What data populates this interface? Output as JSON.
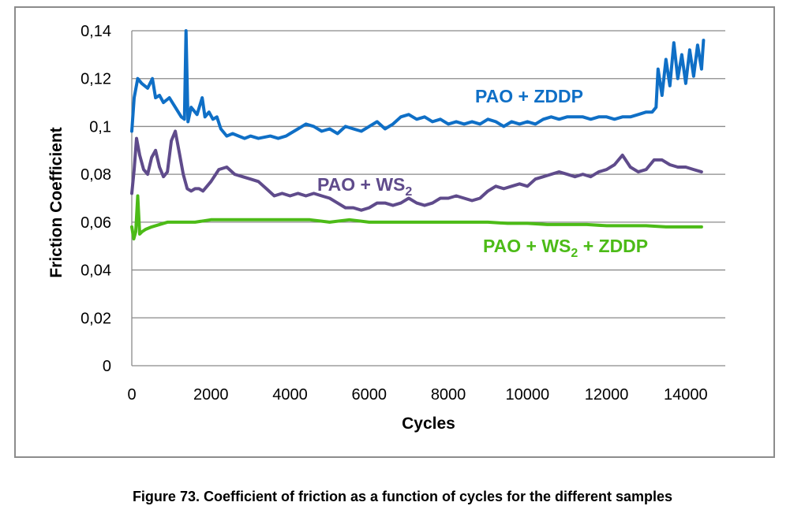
{
  "caption": "Figure 73. Coefficient of friction as a function of cycles for the different samples",
  "chart_data": {
    "type": "line",
    "title": "",
    "xlabel": "Cycles",
    "ylabel": "Friction Coefficient",
    "xlim": [
      0,
      15000
    ],
    "ylim": [
      0,
      0.14
    ],
    "x_ticks": [
      0,
      2000,
      4000,
      6000,
      8000,
      10000,
      12000,
      14000
    ],
    "x_tick_labels": [
      "0",
      "2000",
      "4000",
      "6000",
      "8000",
      "10000",
      "12000",
      "14000"
    ],
    "y_ticks": [
      0,
      0.02,
      0.04,
      0.06,
      0.08,
      0.1,
      0.12,
      0.14
    ],
    "y_tick_labels": [
      "0",
      "0,02",
      "0,04",
      "0,06",
      "0,08",
      "0,1",
      "0,12",
      "0,14"
    ],
    "grid": "horizontal",
    "legend": "inline labels",
    "series": [
      {
        "name": "PAO + ZDDP",
        "label_main": "PAO + ZDDP",
        "label_sub": "",
        "label_tail": "",
        "color": "#0f6fc6",
        "x": [
          0,
          60,
          150,
          250,
          400,
          520,
          600,
          700,
          800,
          950,
          1100,
          1250,
          1330,
          1370,
          1420,
          1500,
          1650,
          1780,
          1850,
          1950,
          2050,
          2150,
          2250,
          2400,
          2550,
          2700,
          2850,
          3000,
          3200,
          3500,
          3700,
          3900,
          4000,
          4200,
          4400,
          4600,
          4800,
          5000,
          5200,
          5400,
          5600,
          5800,
          6000,
          6200,
          6400,
          6600,
          6800,
          7000,
          7200,
          7400,
          7600,
          7800,
          8000,
          8200,
          8400,
          8600,
          8800,
          9000,
          9200,
          9400,
          9600,
          9800,
          10000,
          10200,
          10400,
          10600,
          10800,
          11000,
          11200,
          11400,
          11600,
          11800,
          12000,
          12200,
          12400,
          12600,
          12800,
          13000,
          13150,
          13250,
          13300,
          13400,
          13500,
          13600,
          13700,
          13800,
          13900,
          14000,
          14100,
          14200,
          14300,
          14400,
          14450
        ],
        "y": [
          0.098,
          0.112,
          0.12,
          0.118,
          0.116,
          0.12,
          0.112,
          0.113,
          0.11,
          0.112,
          0.108,
          0.104,
          0.103,
          0.14,
          0.102,
          0.108,
          0.105,
          0.112,
          0.104,
          0.106,
          0.103,
          0.104,
          0.099,
          0.096,
          0.097,
          0.096,
          0.095,
          0.096,
          0.095,
          0.096,
          0.095,
          0.096,
          0.097,
          0.099,
          0.101,
          0.1,
          0.098,
          0.099,
          0.097,
          0.1,
          0.099,
          0.098,
          0.1,
          0.102,
          0.099,
          0.101,
          0.104,
          0.105,
          0.103,
          0.104,
          0.102,
          0.103,
          0.101,
          0.102,
          0.101,
          0.102,
          0.101,
          0.103,
          0.102,
          0.1,
          0.102,
          0.101,
          0.102,
          0.101,
          0.103,
          0.104,
          0.103,
          0.104,
          0.104,
          0.104,
          0.103,
          0.104,
          0.104,
          0.103,
          0.104,
          0.104,
          0.105,
          0.106,
          0.106,
          0.108,
          0.124,
          0.113,
          0.128,
          0.117,
          0.135,
          0.12,
          0.13,
          0.118,
          0.132,
          0.121,
          0.134,
          0.124,
          0.136
        ]
      },
      {
        "name": "PAO + WS2",
        "label_main": "PAO + WS",
        "label_sub": "2",
        "label_tail": "",
        "color": "#5f4b8b",
        "x": [
          0,
          60,
          120,
          200,
          300,
          400,
          500,
          600,
          700,
          800,
          900,
          1000,
          1100,
          1200,
          1300,
          1400,
          1500,
          1600,
          1700,
          1800,
          1900,
          2000,
          2200,
          2400,
          2600,
          2800,
          3000,
          3200,
          3400,
          3600,
          3800,
          4000,
          4200,
          4400,
          4600,
          4800,
          5000,
          5200,
          5400,
          5600,
          5800,
          6000,
          6200,
          6400,
          6600,
          6800,
          7000,
          7200,
          7400,
          7600,
          7800,
          8000,
          8200,
          8400,
          8600,
          8800,
          9000,
          9200,
          9400,
          9600,
          9800,
          10000,
          10200,
          10400,
          10600,
          10800,
          11000,
          11200,
          11400,
          11600,
          11800,
          12000,
          12200,
          12400,
          12600,
          12800,
          13000,
          13200,
          13400,
          13600,
          13800,
          14000,
          14200,
          14400
        ],
        "y": [
          0.072,
          0.082,
          0.095,
          0.088,
          0.082,
          0.08,
          0.087,
          0.09,
          0.083,
          0.079,
          0.081,
          0.094,
          0.098,
          0.089,
          0.08,
          0.074,
          0.073,
          0.074,
          0.074,
          0.073,
          0.075,
          0.077,
          0.082,
          0.083,
          0.08,
          0.079,
          0.078,
          0.077,
          0.074,
          0.071,
          0.072,
          0.071,
          0.072,
          0.071,
          0.072,
          0.071,
          0.07,
          0.068,
          0.066,
          0.066,
          0.065,
          0.066,
          0.068,
          0.068,
          0.067,
          0.068,
          0.07,
          0.068,
          0.067,
          0.068,
          0.07,
          0.07,
          0.071,
          0.07,
          0.069,
          0.07,
          0.073,
          0.075,
          0.074,
          0.075,
          0.076,
          0.075,
          0.078,
          0.079,
          0.08,
          0.081,
          0.08,
          0.079,
          0.08,
          0.079,
          0.081,
          0.082,
          0.084,
          0.088,
          0.083,
          0.081,
          0.082,
          0.086,
          0.086,
          0.084,
          0.083,
          0.083,
          0.082,
          0.081
        ]
      },
      {
        "name": "PAO + WS2 + ZDDP",
        "label_main": "PAO + WS",
        "label_sub": "2",
        "label_tail": " + ZDDP",
        "color": "#4cbb17",
        "x": [
          0,
          50,
          100,
          150,
          200,
          260,
          350,
          500,
          700,
          900,
          1200,
          1600,
          2000,
          2500,
          3000,
          3500,
          4000,
          4500,
          5000,
          5500,
          6000,
          6500,
          7000,
          7500,
          8000,
          8500,
          9000,
          9500,
          10000,
          10500,
          11000,
          11500,
          12000,
          12500,
          13000,
          13500,
          14000,
          14400
        ],
        "y": [
          0.058,
          0.053,
          0.056,
          0.071,
          0.055,
          0.056,
          0.057,
          0.058,
          0.059,
          0.06,
          0.06,
          0.06,
          0.061,
          0.061,
          0.061,
          0.061,
          0.061,
          0.061,
          0.06,
          0.061,
          0.06,
          0.06,
          0.06,
          0.06,
          0.06,
          0.06,
          0.06,
          0.0595,
          0.0595,
          0.059,
          0.059,
          0.059,
          0.0585,
          0.0585,
          0.0585,
          0.058,
          0.058,
          0.058
        ]
      }
    ]
  }
}
